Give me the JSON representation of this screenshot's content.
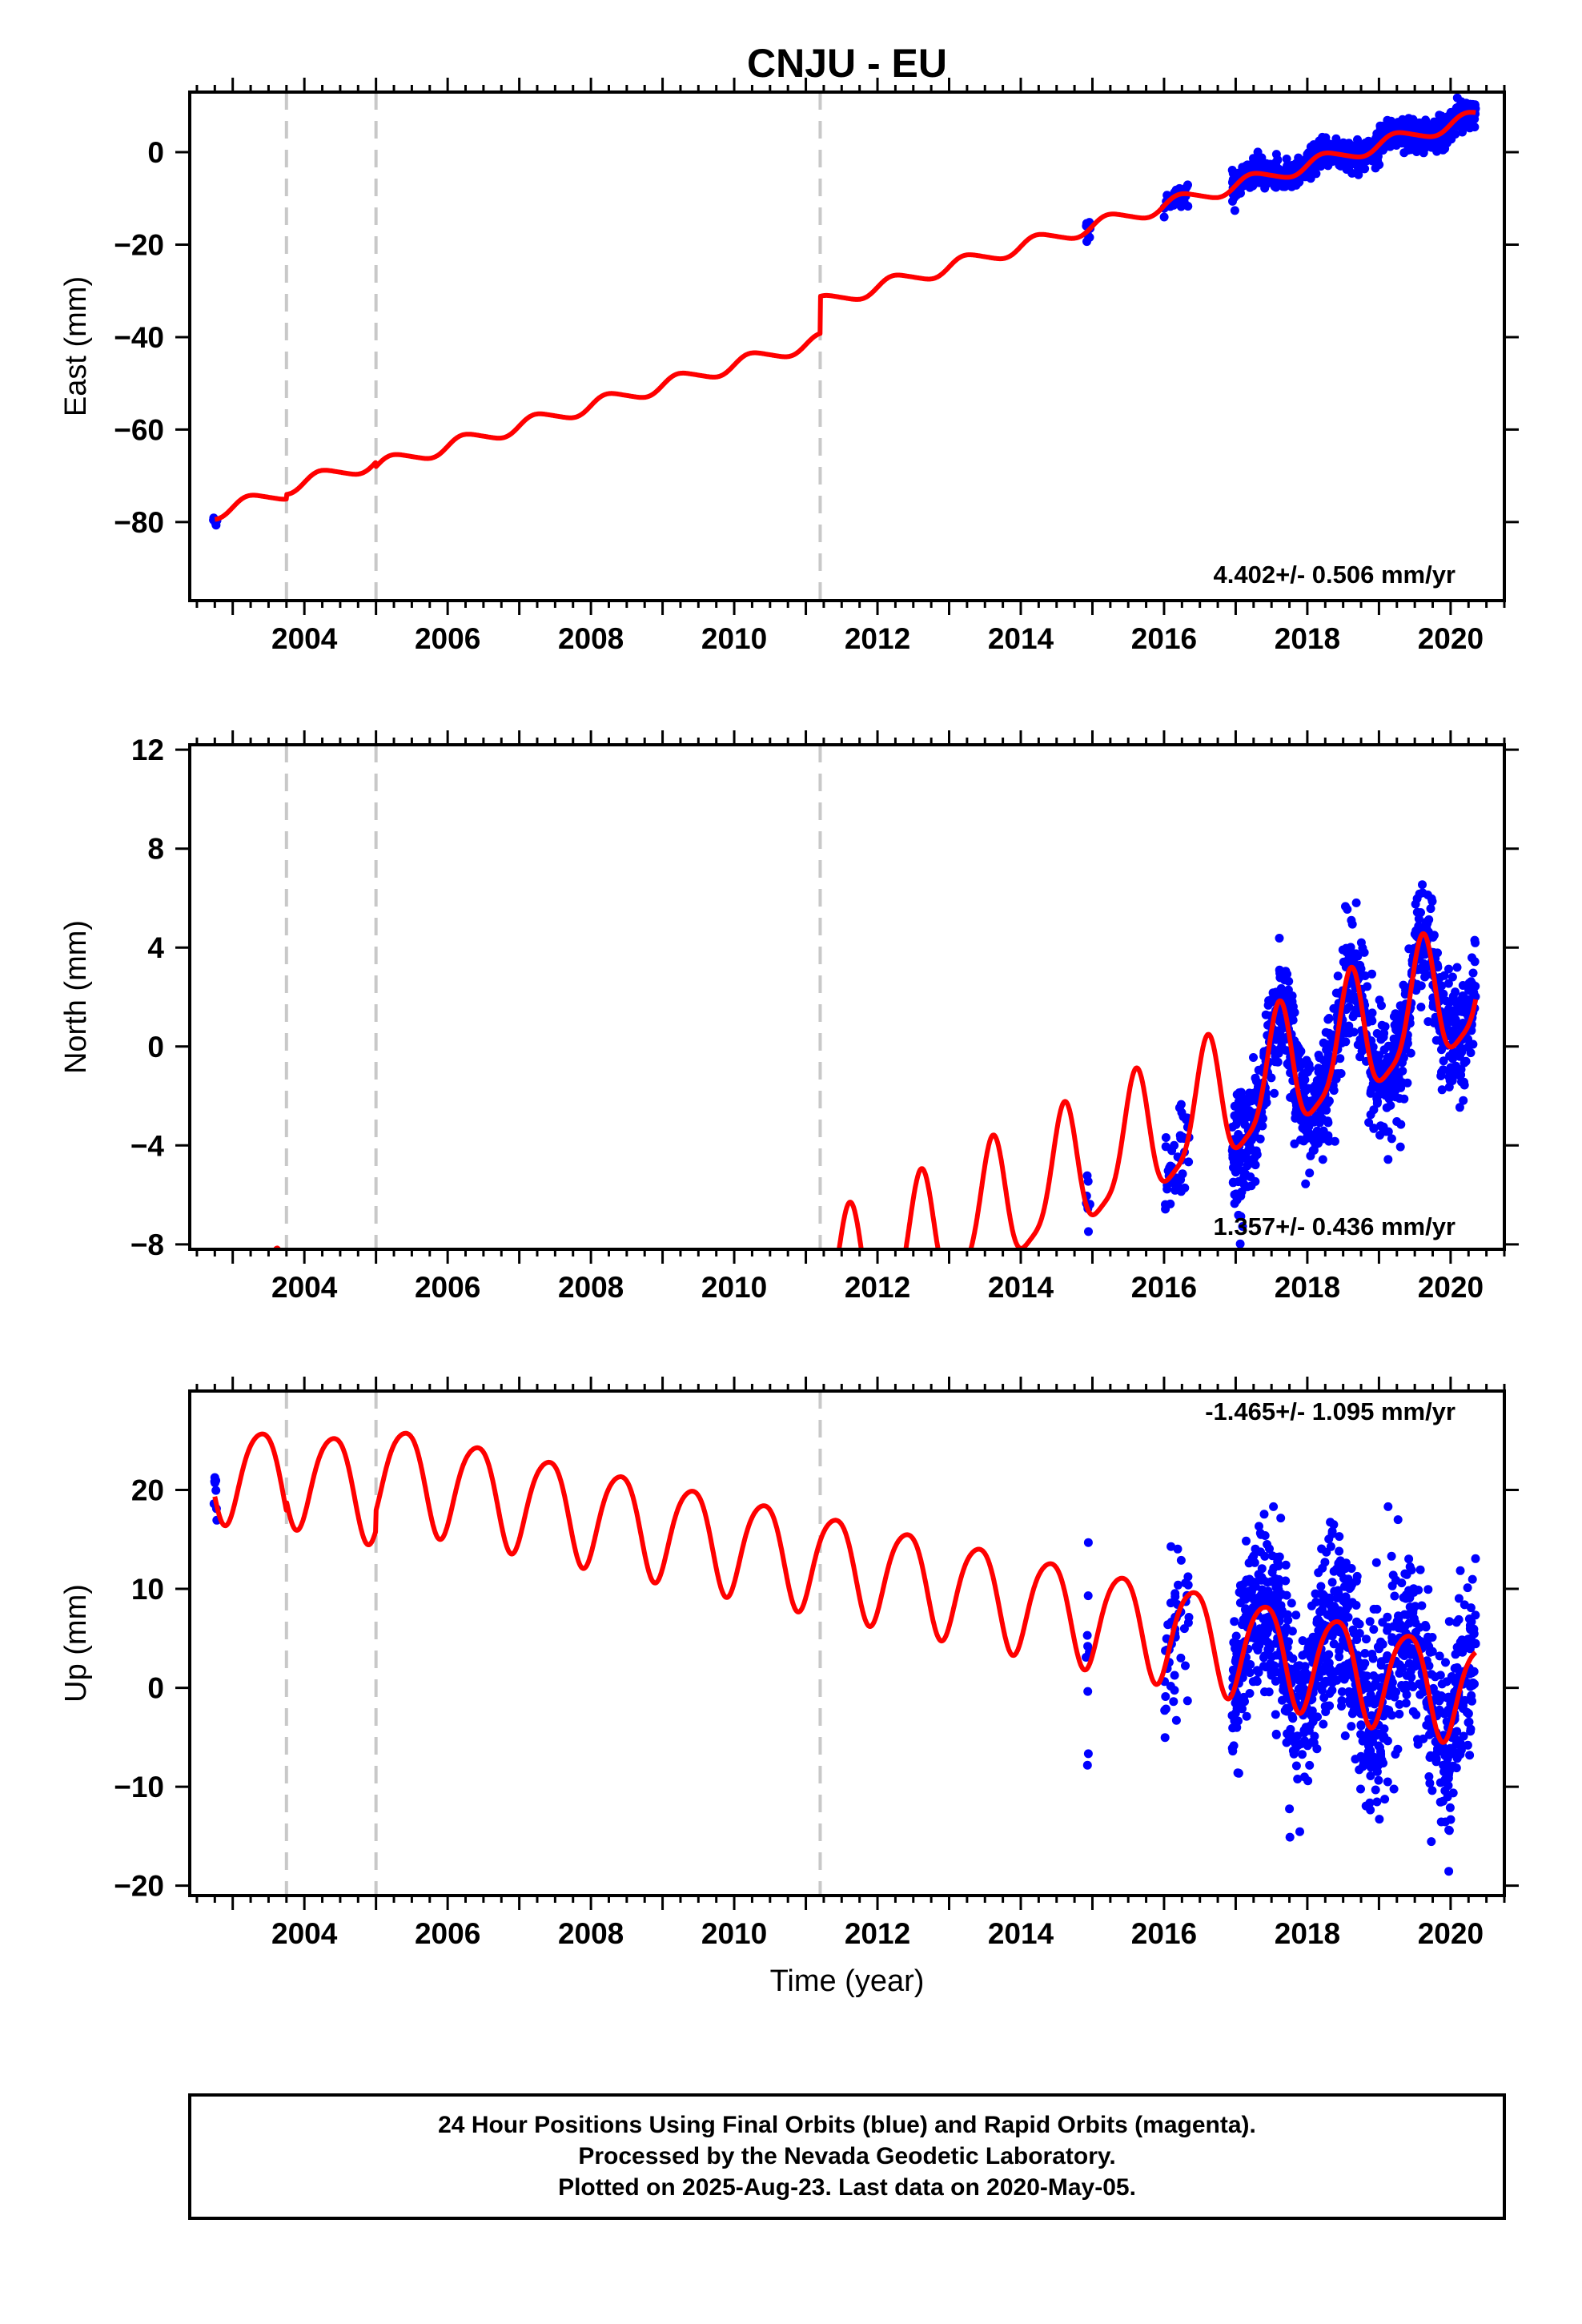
{
  "title": "CNJU - EU",
  "xlabel": "Time (year)",
  "footer_lines": [
    "24 Hour Positions Using Final Orbits (blue) and Rapid Orbits (magenta).",
    "Processed by the Nevada Geodetic Laboratory.",
    "Plotted on 2025-Aug-23. Last data on 2020-May-05."
  ],
  "colors": {
    "data": "#0000ff",
    "model": "#ff0000",
    "offset_line": "#c8c8c8",
    "axes": "#000000"
  },
  "chart_data": [
    {
      "type": "scatter",
      "ylabel": "East (mm)",
      "rate_text": "4.402+/- 0.506 mm/yr",
      "xlim": [
        2002.4,
        2020.75
      ],
      "ylim": [
        -97,
        13
      ],
      "x_ticks": [
        2004,
        2006,
        2008,
        2010,
        2012,
        2014,
        2016,
        2018,
        2020
      ],
      "y_ticks": [
        0,
        -20,
        -40,
        -60,
        -80
      ],
      "offset_lines": [
        2003.75,
        2005.0,
        2011.2
      ],
      "model": {
        "rate": 4.402,
        "anchor": [
          2020.0,
          6.0
        ],
        "segment_offsets": [
          -8.0,
          -7.0,
          -8.0,
          0.0
        ],
        "annual_amp": 1.5,
        "annual_phase": 0.0,
        "semiannual_amp": 0.2,
        "start": 2002.75,
        "end": 2020.35
      },
      "scatter_windows": [
        {
          "from": 2002.72,
          "to": 2002.78,
          "count": 6,
          "sigma": 0.8
        },
        {
          "from": 2014.9,
          "to": 2014.97,
          "count": 8,
          "sigma": 1.5
        },
        {
          "from": 2016.0,
          "to": 2016.35,
          "count": 35,
          "sigma": 1.5
        },
        {
          "from": 2016.95,
          "to": 2020.35,
          "count": 1100,
          "sigma": 1.5
        }
      ]
    },
    {
      "type": "scatter",
      "ylabel": "North (mm)",
      "rate_text": "1.357+/- 0.436 mm/yr",
      "xlim": [
        2002.4,
        2020.75
      ],
      "ylim": [
        -8.2,
        12.2
      ],
      "x_ticks": [
        2004,
        2006,
        2008,
        2010,
        2012,
        2014,
        2016,
        2018,
        2020
      ],
      "y_ticks": [
        12,
        8,
        4,
        0,
        -4,
        -8
      ],
      "offset_lines": [
        2003.75,
        2005.0,
        2011.2
      ],
      "model": {
        "rate": 1.357,
        "anchor": [
          2020.0,
          2.0
        ],
        "segment_offsets": [
          9.0,
          2.0,
          -6.0,
          0.0
        ],
        "annual_amp": 2.5,
        "annual_phase": 0.35,
        "semiannual_amp": 0.6,
        "start": 2002.75,
        "end": 2020.35
      },
      "scatter_windows": [
        {
          "from": 2002.72,
          "to": 2002.78,
          "count": 8,
          "sigma": 0.8
        },
        {
          "from": 2014.9,
          "to": 2014.97,
          "count": 8,
          "sigma": 0.8
        },
        {
          "from": 2016.0,
          "to": 2016.35,
          "count": 40,
          "sigma": 1.0
        },
        {
          "from": 2016.95,
          "to": 2020.35,
          "count": 1100,
          "sigma": 1.2
        }
      ]
    },
    {
      "type": "scatter",
      "ylabel": "Up (mm)",
      "rate_text": "-1.465+/- 1.095 mm/yr",
      "xlim": [
        2002.4,
        2020.75
      ],
      "ylim": [
        -21,
        30
      ],
      "x_ticks": [
        2004,
        2006,
        2008,
        2010,
        2012,
        2014,
        2016,
        2018,
        2020
      ],
      "y_ticks": [
        20,
        10,
        0,
        -10,
        -20
      ],
      "offset_lines": [
        2003.75,
        2005.0,
        2011.2
      ],
      "model": {
        "rate": -1.465,
        "anchor": [
          2020.0,
          0.0
        ],
        "segment_offsets": [
          -3.0,
          -2.0,
          0.0,
          0.0
        ],
        "annual_amp": 5.0,
        "annual_phase": 0.15,
        "semiannual_amp": 0.7,
        "start": 2002.75,
        "end": 2020.35
      },
      "scatter_windows": [
        {
          "from": 2002.72,
          "to": 2002.78,
          "count": 8,
          "sigma": 2.0
        },
        {
          "from": 2014.9,
          "to": 2014.97,
          "count": 10,
          "sigma": 5.0
        },
        {
          "from": 2016.0,
          "to": 2016.35,
          "count": 45,
          "sigma": 4.0
        },
        {
          "from": 2016.95,
          "to": 2020.35,
          "count": 1100,
          "sigma": 4.5
        }
      ]
    }
  ]
}
